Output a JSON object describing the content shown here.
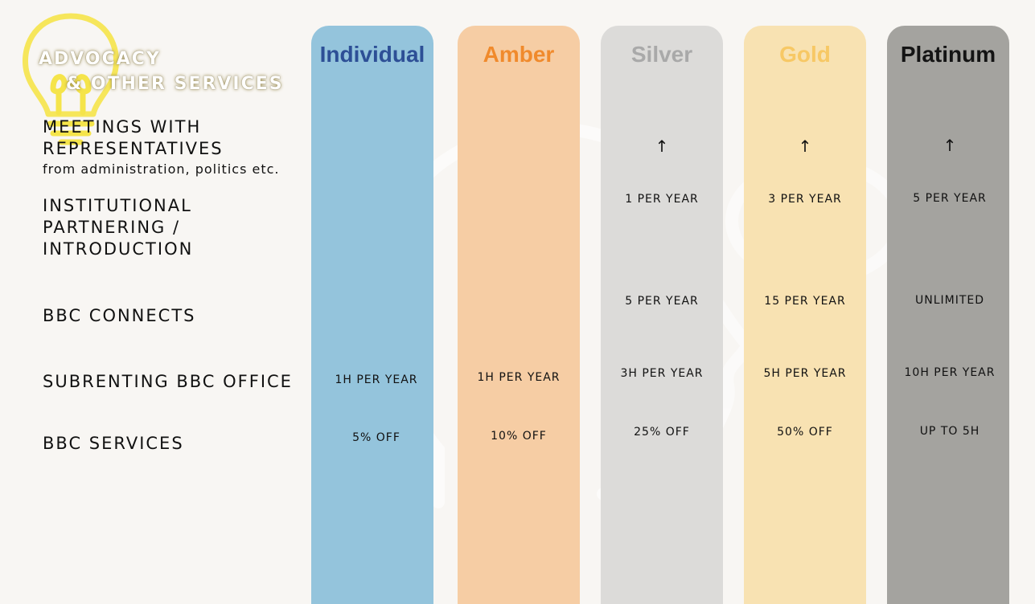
{
  "heading": {
    "line1": "ADVOCACY",
    "line2": "& OTHER SERVICES"
  },
  "rows": {
    "meetings": {
      "label_line1": "MEETINGS WITH",
      "label_line2": "REPRESENTATIVES",
      "sub": "from administration, politics etc."
    },
    "institutional": {
      "label_line1": "INSTITUTIONAL",
      "label_line2": "PARTNERING /",
      "label_line3": "INTRODUCTION"
    },
    "connects": {
      "label": "BBC CONNECTS"
    },
    "subrenting": {
      "label": "SUBRENTING BBC OFFICE"
    },
    "services": {
      "label": "BBC SERVICES"
    }
  },
  "tiers": [
    {
      "name": "Individual",
      "color": "#94c4dc",
      "title_color": "#2d4f96",
      "meetings": "",
      "institutional": "",
      "connects": "",
      "subrenting": "1H PER YEAR",
      "services": "5% OFF"
    },
    {
      "name": "Amber",
      "color": "#f6cda4",
      "title_color": "#f08a2c",
      "meetings": "",
      "institutional": "",
      "connects": "",
      "subrenting": "1H PER YEAR",
      "services": "10% OFF"
    },
    {
      "name": "Silver",
      "color": "#dcdbd9",
      "title_color": "#a9a9a9",
      "meetings": "↑",
      "institutional": "1 PER YEAR",
      "connects": "5 PER YEAR",
      "subrenting": "3H PER YEAR",
      "services": "25% OFF"
    },
    {
      "name": "Gold",
      "color": "#f8e2b2",
      "title_color": "#f7c865",
      "meetings": "↑",
      "institutional": "3 PER YEAR",
      "connects": "15 PER YEAR",
      "subrenting": "5H PER YEAR",
      "services": "50% OFF"
    },
    {
      "name": "Platinum",
      "color": "#a4a39f",
      "title_color": "#141414",
      "meetings": "↑",
      "institutional": "5 PER YEAR",
      "connects": "UNLIMITED",
      "subrenting": "10H PER YEAR",
      "services": "UP TO 5H"
    }
  ]
}
